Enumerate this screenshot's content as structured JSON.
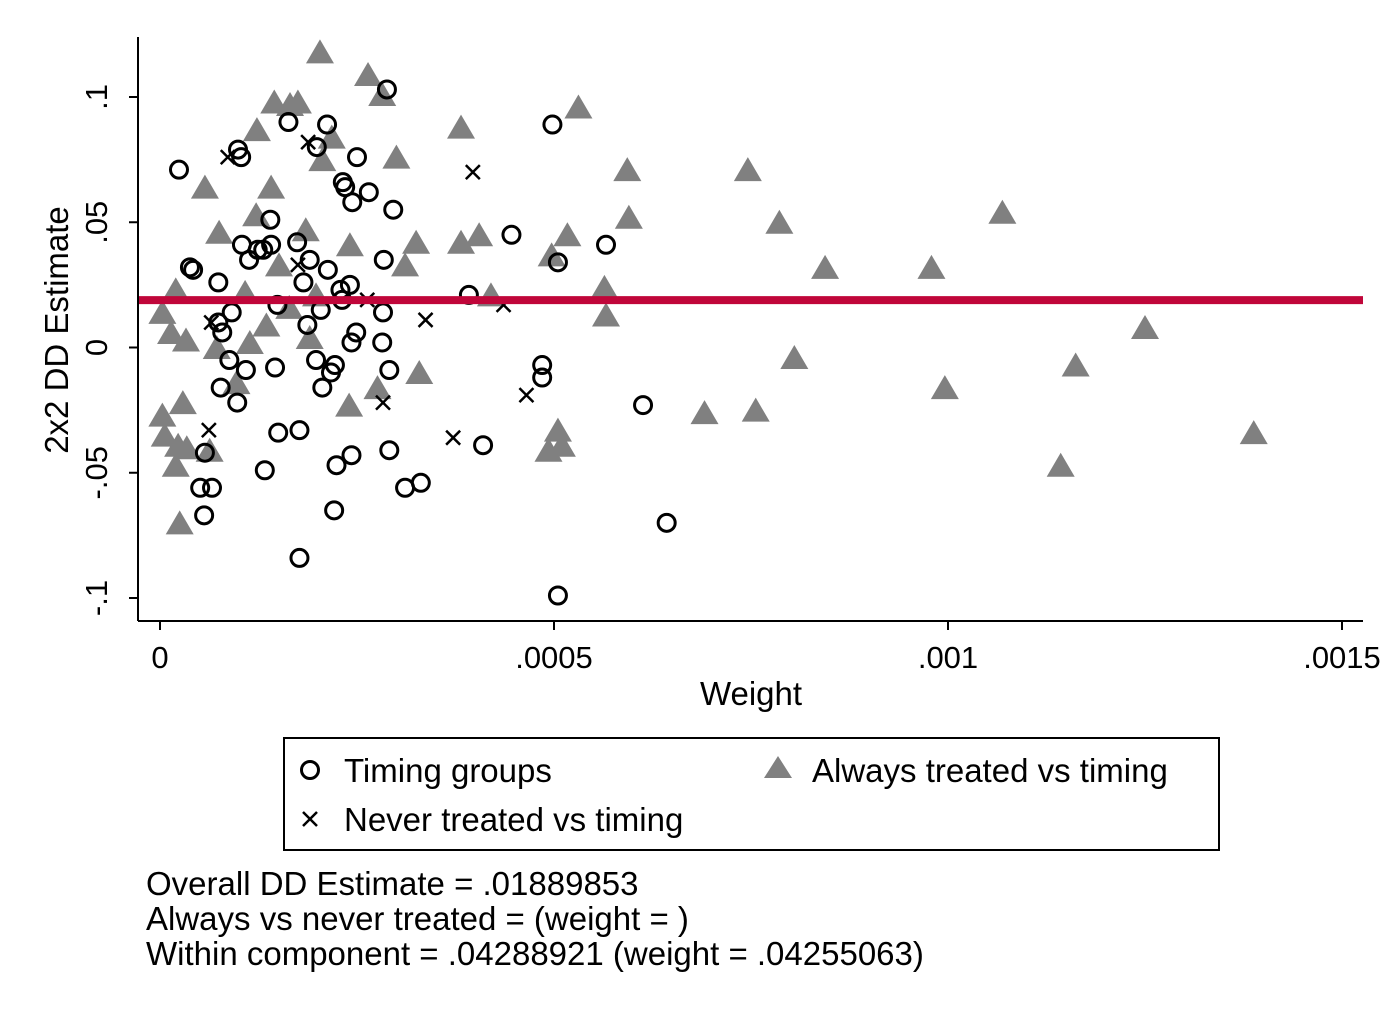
{
  "chart_data": {
    "type": "scatter",
    "title": "",
    "xlabel": "Weight",
    "ylabel": "2x2 DD Estimate",
    "xlim": [
      0,
      0.0015
    ],
    "ylim": [
      -0.1,
      0.1
    ],
    "x_ticks": [
      0,
      0.0005,
      0.001,
      0.0015
    ],
    "x_tick_labels": [
      "0",
      ".0005",
      ".001",
      ".0015"
    ],
    "y_ticks": [
      -0.1,
      -0.05,
      0,
      0.05,
      0.1
    ],
    "y_tick_labels": [
      "-.1",
      "-.05",
      "0",
      ".05",
      ".1"
    ],
    "grid": false,
    "reference_line": {
      "y": 0.01889853,
      "color": "#c0063a"
    },
    "legend_placement": "bottom",
    "series": [
      {
        "name": "Timing groups",
        "marker": "hollow-circle",
        "color": "#000000",
        "points": [
          [
            2.41e-05,
            0.071
          ],
          [
            9.9e-05,
            0.079
          ],
          [
            0.000103,
            0.076
          ],
          [
            3.8e-05,
            0.032
          ],
          [
            4.2e-05,
            0.031
          ],
          [
            7.4e-05,
            0.026
          ],
          [
            0.000104,
            0.041
          ],
          [
            0.000113,
            0.035
          ],
          [
            0.000124,
            0.039
          ],
          [
            0.000131,
            0.039
          ],
          [
            0.00014,
            0.051
          ],
          [
            0.000141,
            0.041
          ],
          [
            0.000174,
            0.042
          ],
          [
            0.000182,
            0.026
          ],
          [
            0.00019,
            0.035
          ],
          [
            0.000213,
            0.031
          ],
          [
            0.000232,
            0.066
          ],
          [
            0.000235,
            0.064
          ],
          [
            0.000244,
            0.058
          ],
          [
            0.00025,
            0.076
          ],
          [
            0.000265,
            0.062
          ],
          [
            0.000296,
            0.055
          ],
          [
            0.000284,
            0.035
          ],
          [
            0.000212,
            0.089
          ],
          [
            0.000288,
            0.103
          ],
          [
            0.000163,
            0.09
          ],
          [
            0.000199,
            0.08
          ],
          [
            7.4e-05,
            0.01
          ],
          [
            7.9e-05,
            0.006
          ],
          [
            9.1e-05,
            0.014
          ],
          [
            8.8e-05,
            -0.005
          ],
          [
            0.000109,
            -0.009
          ],
          [
            7.7e-05,
            -0.016
          ],
          [
            9.8e-05,
            -0.022
          ],
          [
            0.000146,
            -0.008
          ],
          [
            0.00015,
            -0.034
          ],
          [
            0.000177,
            -0.033
          ],
          [
            0.000133,
            -0.049
          ],
          [
            5.7e-05,
            -0.042
          ],
          [
            5.1e-05,
            -0.056
          ],
          [
            6.6e-05,
            -0.056
          ],
          [
            5.6e-05,
            -0.067
          ],
          [
            0.000177,
            -0.084
          ],
          [
            0.000149,
            0.017
          ],
          [
            0.000187,
            0.009
          ],
          [
            0.000204,
            0.015
          ],
          [
            0.000229,
            0.023
          ],
          [
            0.000231,
            0.019
          ],
          [
            0.000241,
            0.025
          ],
          [
            0.000249,
            0.006
          ],
          [
            0.000243,
            0.002
          ],
          [
            0.000283,
            0.014
          ],
          [
            0.000282,
            0.002
          ],
          [
            0.000291,
            -0.009
          ],
          [
            0.000222,
            -0.007
          ],
          [
            0.000217,
            -0.01
          ],
          [
            0.000198,
            -0.005
          ],
          [
            0.000206,
            -0.016
          ],
          [
            0.000224,
            -0.047
          ],
          [
            0.000243,
            -0.043
          ],
          [
            0.000291,
            -0.041
          ],
          [
            0.000311,
            -0.056
          ],
          [
            0.000331,
            -0.054
          ],
          [
            0.000221,
            -0.065
          ],
          [
            0.000392,
            0.021
          ],
          [
            0.000446,
            0.045
          ],
          [
            0.000498,
            0.089
          ],
          [
            0.000505,
            0.034
          ],
          [
            0.000485,
            -0.007
          ],
          [
            0.000485,
            -0.012
          ],
          [
            0.00041,
            -0.039
          ],
          [
            0.000566,
            0.041
          ],
          [
            0.000613,
            -0.023
          ],
          [
            0.000643,
            -0.07
          ],
          [
            0.000505,
            -0.099
          ]
        ]
      },
      {
        "name": "Never treated vs timing",
        "marker": "x",
        "color": "#000000",
        "points": [
          [
            8.6e-05,
            0.076
          ],
          [
            0.000188,
            0.082
          ],
          [
            0.000397,
            0.07
          ],
          [
            0.000175,
            0.033
          ],
          [
            0.000263,
            0.019
          ],
          [
            0.000436,
            0.017
          ],
          [
            0.000337,
            0.011
          ],
          [
            6.5e-05,
            0.01
          ],
          [
            6.2e-05,
            -0.033
          ],
          [
            0.000283,
            -0.022
          ],
          [
            0.000372,
            -0.036
          ],
          [
            0.000465,
            -0.019
          ]
        ]
      },
      {
        "name": "Always treated vs timing",
        "marker": "filled-triangle",
        "color": "#808080",
        "points": [
          [
            0.000203,
            0.117
          ],
          [
            0.000264,
            0.108
          ],
          [
            0.000282,
            0.1
          ],
          [
            0.000145,
            0.097
          ],
          [
            0.000165,
            0.096
          ],
          [
            0.000175,
            0.097
          ],
          [
            0.000123,
            0.086
          ],
          [
            0.000218,
            0.083
          ],
          [
            0.000206,
            0.074
          ],
          [
            0.0003,
            0.075
          ],
          [
            0.000382,
            0.087
          ],
          [
            0.000531,
            0.095
          ],
          [
            5.7e-05,
            0.063
          ],
          [
            0.000141,
            0.063
          ],
          [
            7.5e-05,
            0.045
          ],
          [
            0.000122,
            0.052
          ],
          [
            0.000151,
            0.032
          ],
          [
            0.000185,
            0.046
          ],
          [
            0.000241,
            0.04
          ],
          [
            0.000325,
            0.041
          ],
          [
            0.000311,
            0.032
          ],
          [
            0.000382,
            0.041
          ],
          [
            0.000405,
            0.044
          ],
          [
            0.000517,
            0.044
          ],
          [
            0.000497,
            0.036
          ],
          [
            0.000593,
            0.07
          ],
          [
            0.000595,
            0.051
          ],
          [
            0.000746,
            0.07
          ],
          [
            0.000786,
            0.049
          ],
          [
            0.000844,
            0.031
          ],
          [
            0.000979,
            0.031
          ],
          [
            0.001069,
            0.053
          ],
          [
            2e-05,
            0.022
          ],
          [
            0.000108,
            0.021
          ],
          [
            3e-06,
            0.013
          ],
          [
            1.4e-05,
            0.005
          ],
          [
            3.3e-05,
            0.002
          ],
          [
            7.2e-05,
            -0.001
          ],
          [
            9.7e-05,
            -0.015
          ],
          [
            0.000114,
            0.001
          ],
          [
            0.000135,
            0.008
          ],
          [
            0.000164,
            0.015
          ],
          [
            0.000198,
            0.02
          ],
          [
            0.00019,
            0.003
          ],
          [
            0.000276,
            -0.017
          ],
          [
            0.000329,
            -0.011
          ],
          [
            0.00024,
            -0.024
          ],
          [
            0.00042,
            0.02
          ],
          [
            0.000564,
            0.023
          ],
          [
            0.000566,
            0.012
          ],
          [
            0.000805,
            -0.005
          ],
          [
            0.000996,
            -0.017
          ],
          [
            0.001162,
            -0.008
          ],
          [
            0.00125,
            0.007
          ],
          [
            0.000691,
            -0.027
          ],
          [
            0.000756,
            -0.026
          ],
          [
            0.001143,
            -0.048
          ],
          [
            0.001388,
            -0.035
          ],
          [
            3e-06,
            -0.028
          ],
          [
            2.9e-05,
            -0.023
          ],
          [
            6e-06,
            -0.036
          ],
          [
            2.3e-05,
            -0.04
          ],
          [
            3.4e-05,
            -0.041
          ],
          [
            6.3e-05,
            -0.042
          ],
          [
            2e-05,
            -0.048
          ],
          [
            2.5e-05,
            -0.071
          ],
          [
            0.000505,
            -0.034
          ],
          [
            0.000493,
            -0.042
          ],
          [
            0.00051,
            -0.04
          ]
        ]
      }
    ]
  },
  "notes": [
    "Overall DD Estimate = .01889853",
    "Always vs never treated =  (weight = )",
    "Within component = .04288921 (weight = .04255063)"
  ]
}
